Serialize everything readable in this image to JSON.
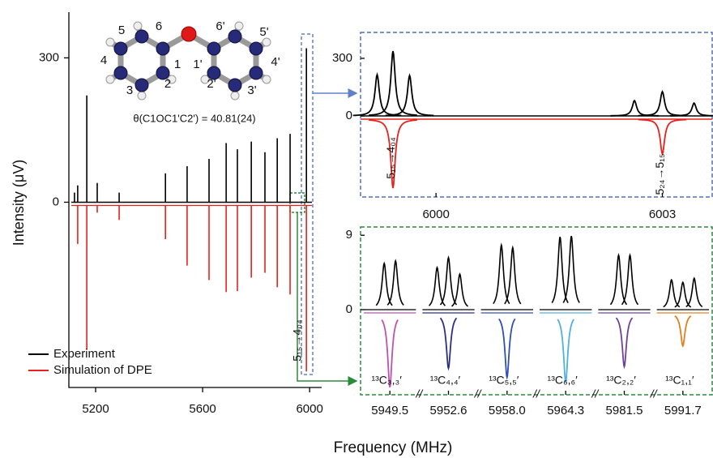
{
  "chart_data": [
    {
      "type": "stick",
      "xlabel": "Frequency (MHz)",
      "ylabel": "Intensity (μV)",
      "xlim": [
        5100,
        6045
      ],
      "xticks": [
        5200,
        5600,
        6000
      ],
      "ylim": [
        -385,
        395
      ],
      "yticks": [
        0,
        300
      ],
      "legend": "lower left",
      "series": [
        {
          "name": "Experiment",
          "color": "#000000",
          "x": [
            5121,
            5133,
            5167,
            5206,
            5288,
            5461,
            5542,
            5624,
            5688,
            5730,
            5782,
            5833,
            5879,
            5927,
            5988
          ],
          "values": [
            20,
            35,
            222,
            40,
            20,
            60,
            75,
            90,
            123,
            110,
            126,
            104,
            133,
            142,
            320
          ]
        },
        {
          "name": "Simulation of DPE",
          "color": "#e8221b",
          "x": [
            5133,
            5167,
            5206,
            5288,
            5461,
            5542,
            5624,
            5688,
            5730,
            5782,
            5833,
            5879,
            5927,
            5988
          ],
          "values": [
            -80,
            -300,
            -15,
            -30,
            -70,
            -125,
            -155,
            -180,
            -178,
            -150,
            -140,
            -170,
            -185,
            -345
          ]
        }
      ],
      "annotation": "5₁₅→4₀₄"
    },
    {
      "type": "spectrum",
      "xlim": [
        5999.0,
        6003.66
      ],
      "xticks": [
        6000,
        6003
      ],
      "ylim": [
        -422,
        435
      ],
      "yticks": [
        0,
        300
      ],
      "series": [
        {
          "name": "Experiment",
          "color": "#000000",
          "x": [
            5999.22,
            5999.43,
            5999.65,
            6002.63,
            6003.0,
            6003.42
          ],
          "values": [
            215,
            338,
            211,
            80,
            127,
            67
          ]
        },
        {
          "name": "Simulation of DPE",
          "color": "#e8221b",
          "x": [
            5999.43,
            6003.0
          ],
          "values": [
            -359,
            -181
          ]
        }
      ],
      "annotations": [
        "5₁₅→4₀₄",
        "5₂₄→5₁₅"
      ]
    },
    {
      "type": "panels",
      "categories": [
        "5949.5",
        "5952.6",
        "5958.0",
        "5964.3",
        "5981.5",
        "5991.7"
      ],
      "ylim": [
        -10.3,
        10
      ],
      "yticks": [
        0,
        9
      ],
      "panels": [
        {
          "label": "¹³C₃,₃′",
          "color": "#c050b0",
          "peaks": [
            5.6,
            5.9
          ],
          "sim": -9.0
        },
        {
          "label": "¹³C₄,₄′",
          "color": "#2a2f8a",
          "peaks": [
            5.1,
            6.3,
            4.3
          ],
          "sim": -6.7
        },
        {
          "label": "¹³C₅,₅′",
          "color": "#3050b0",
          "peaks": [
            7.8,
            7.5
          ],
          "sim": -7.8
        },
        {
          "label": "¹³C₆,₆′",
          "color": "#50b0e0",
          "peaks": [
            8.8,
            8.9
          ],
          "sim": -8.4
        },
        {
          "label": "¹³C₂,₂′",
          "color": "#7040a0",
          "peaks": [
            6.6,
            6.6
          ],
          "sim": -6.5
        },
        {
          "label": "¹³C₁,₁′",
          "color": "#e08020",
          "peaks": [
            3.6,
            3.3,
            3.8
          ],
          "sim": -4.0
        }
      ]
    }
  ],
  "molecule": {
    "labels": [
      {
        "text": "5",
        "color": "#2a2f8a"
      },
      {
        "text": "6",
        "color": "#40a8e0"
      },
      {
        "text": "4",
        "color": "#2a2f8a"
      },
      {
        "text": "3",
        "color": "#b03090"
      },
      {
        "text": "2",
        "color": "#2a2f8a"
      },
      {
        "text": "1",
        "color": "#e08020"
      },
      {
        "text": "1'",
        "color": "#e08020"
      },
      {
        "text": "6'",
        "color": "#40a8e0"
      },
      {
        "text": "5'",
        "color": "#2a2f8a"
      },
      {
        "text": "4'",
        "color": "#2a2f8a"
      },
      {
        "text": "3'",
        "color": "#b03090"
      },
      {
        "text": "2'",
        "color": "#2a2f8a"
      }
    ],
    "angle": "θ(C1OC1'C2') = 40.81(24)"
  }
}
